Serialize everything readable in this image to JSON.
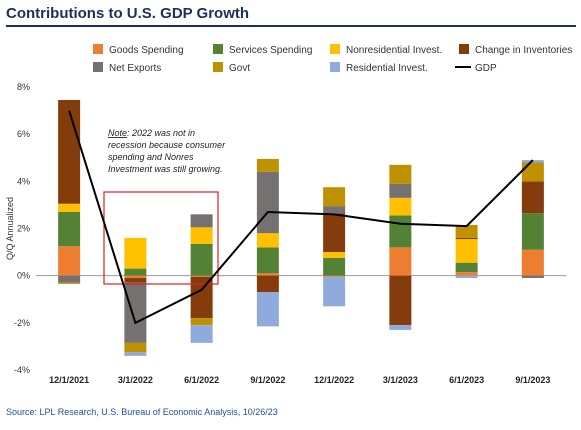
{
  "chart_data": {
    "type": "bar",
    "stacked": true,
    "title": "Contributions to U.S. GDP Growth",
    "ylabel": "Q/Q Annualized",
    "ylim": [
      -4,
      8
    ],
    "yticks": [
      -4,
      -2,
      0,
      2,
      4,
      6,
      8
    ],
    "ytick_labels": [
      "-4%",
      "-2%",
      "0%",
      "2%",
      "4%",
      "6%",
      "8%"
    ],
    "categories": [
      "12/1/2021",
      "3/1/2022",
      "6/1/2022",
      "9/1/2022",
      "12/1/2022",
      "3/1/2023",
      "6/1/2023",
      "9/1/2023"
    ],
    "bar_positions": [
      0,
      1,
      2,
      3,
      4,
      5,
      6,
      7,
      8,
      9,
      10,
      11,
      12,
      13,
      14,
      15,
      16,
      17,
      18,
      19,
      20,
      21,
      22,
      23,
      24,
      25,
      26,
      27,
      28
    ],
    "category_positions": [
      0,
      8,
      12,
      16,
      20,
      24,
      28
    ],
    "series": [
      {
        "name": "Goods Spending",
        "color": "#ed7d31",
        "values": [
          1.25,
          -0.1,
          -0.05,
          0.1,
          -0.05,
          1.2,
          0.15,
          1.1
        ]
      },
      {
        "name": "Services Spending",
        "color": "#548235",
        "values": [
          1.45,
          0.3,
          1.35,
          1.1,
          0.75,
          1.35,
          0.4,
          1.55
        ]
      },
      {
        "name": "Nonresidential Invest.",
        "color": "#ffc000",
        "values": [
          0.35,
          1.3,
          0.7,
          0.6,
          0.25,
          0.75,
          1.0,
          0.0
        ]
      },
      {
        "name": "Change in Inventories",
        "color": "#843c0c",
        "values": [
          4.4,
          -0.2,
          -1.75,
          -0.7,
          1.65,
          -2.1,
          0.05,
          1.35
        ]
      },
      {
        "name": "Net Exports",
        "color": "#767171",
        "values": [
          -0.3,
          -2.55,
          0.55,
          2.6,
          0.3,
          0.6,
          0.0,
          -0.1
        ]
      },
      {
        "name": "Govt",
        "color": "#bf9000",
        "values": [
          -0.05,
          -0.4,
          -0.3,
          0.55,
          0.8,
          0.8,
          0.55,
          0.8
        ]
      },
      {
        "name": "Residential Invest.",
        "color": "#8faadc",
        "values": [
          0.0,
          -0.15,
          -0.75,
          -1.45,
          -1.25,
          -0.2,
          -0.1,
          0.1
        ]
      }
    ],
    "gdp": {
      "name": "GDP",
      "color": "#000000",
      "values": [
        7.0,
        -2.0,
        -0.6,
        2.7,
        2.6,
        2.2,
        2.1,
        4.9
      ]
    },
    "legend_position": "top",
    "grid": false
  },
  "annotation": {
    "heading": "Note",
    "lines": [
      ": 2022 was not in",
      "recession because consumer",
      "spending and Nonres",
      "Investment was still growing."
    ]
  },
  "source": "Source: LPL Research, U.S. Bureau of Economic Analysis, 10/26/23"
}
